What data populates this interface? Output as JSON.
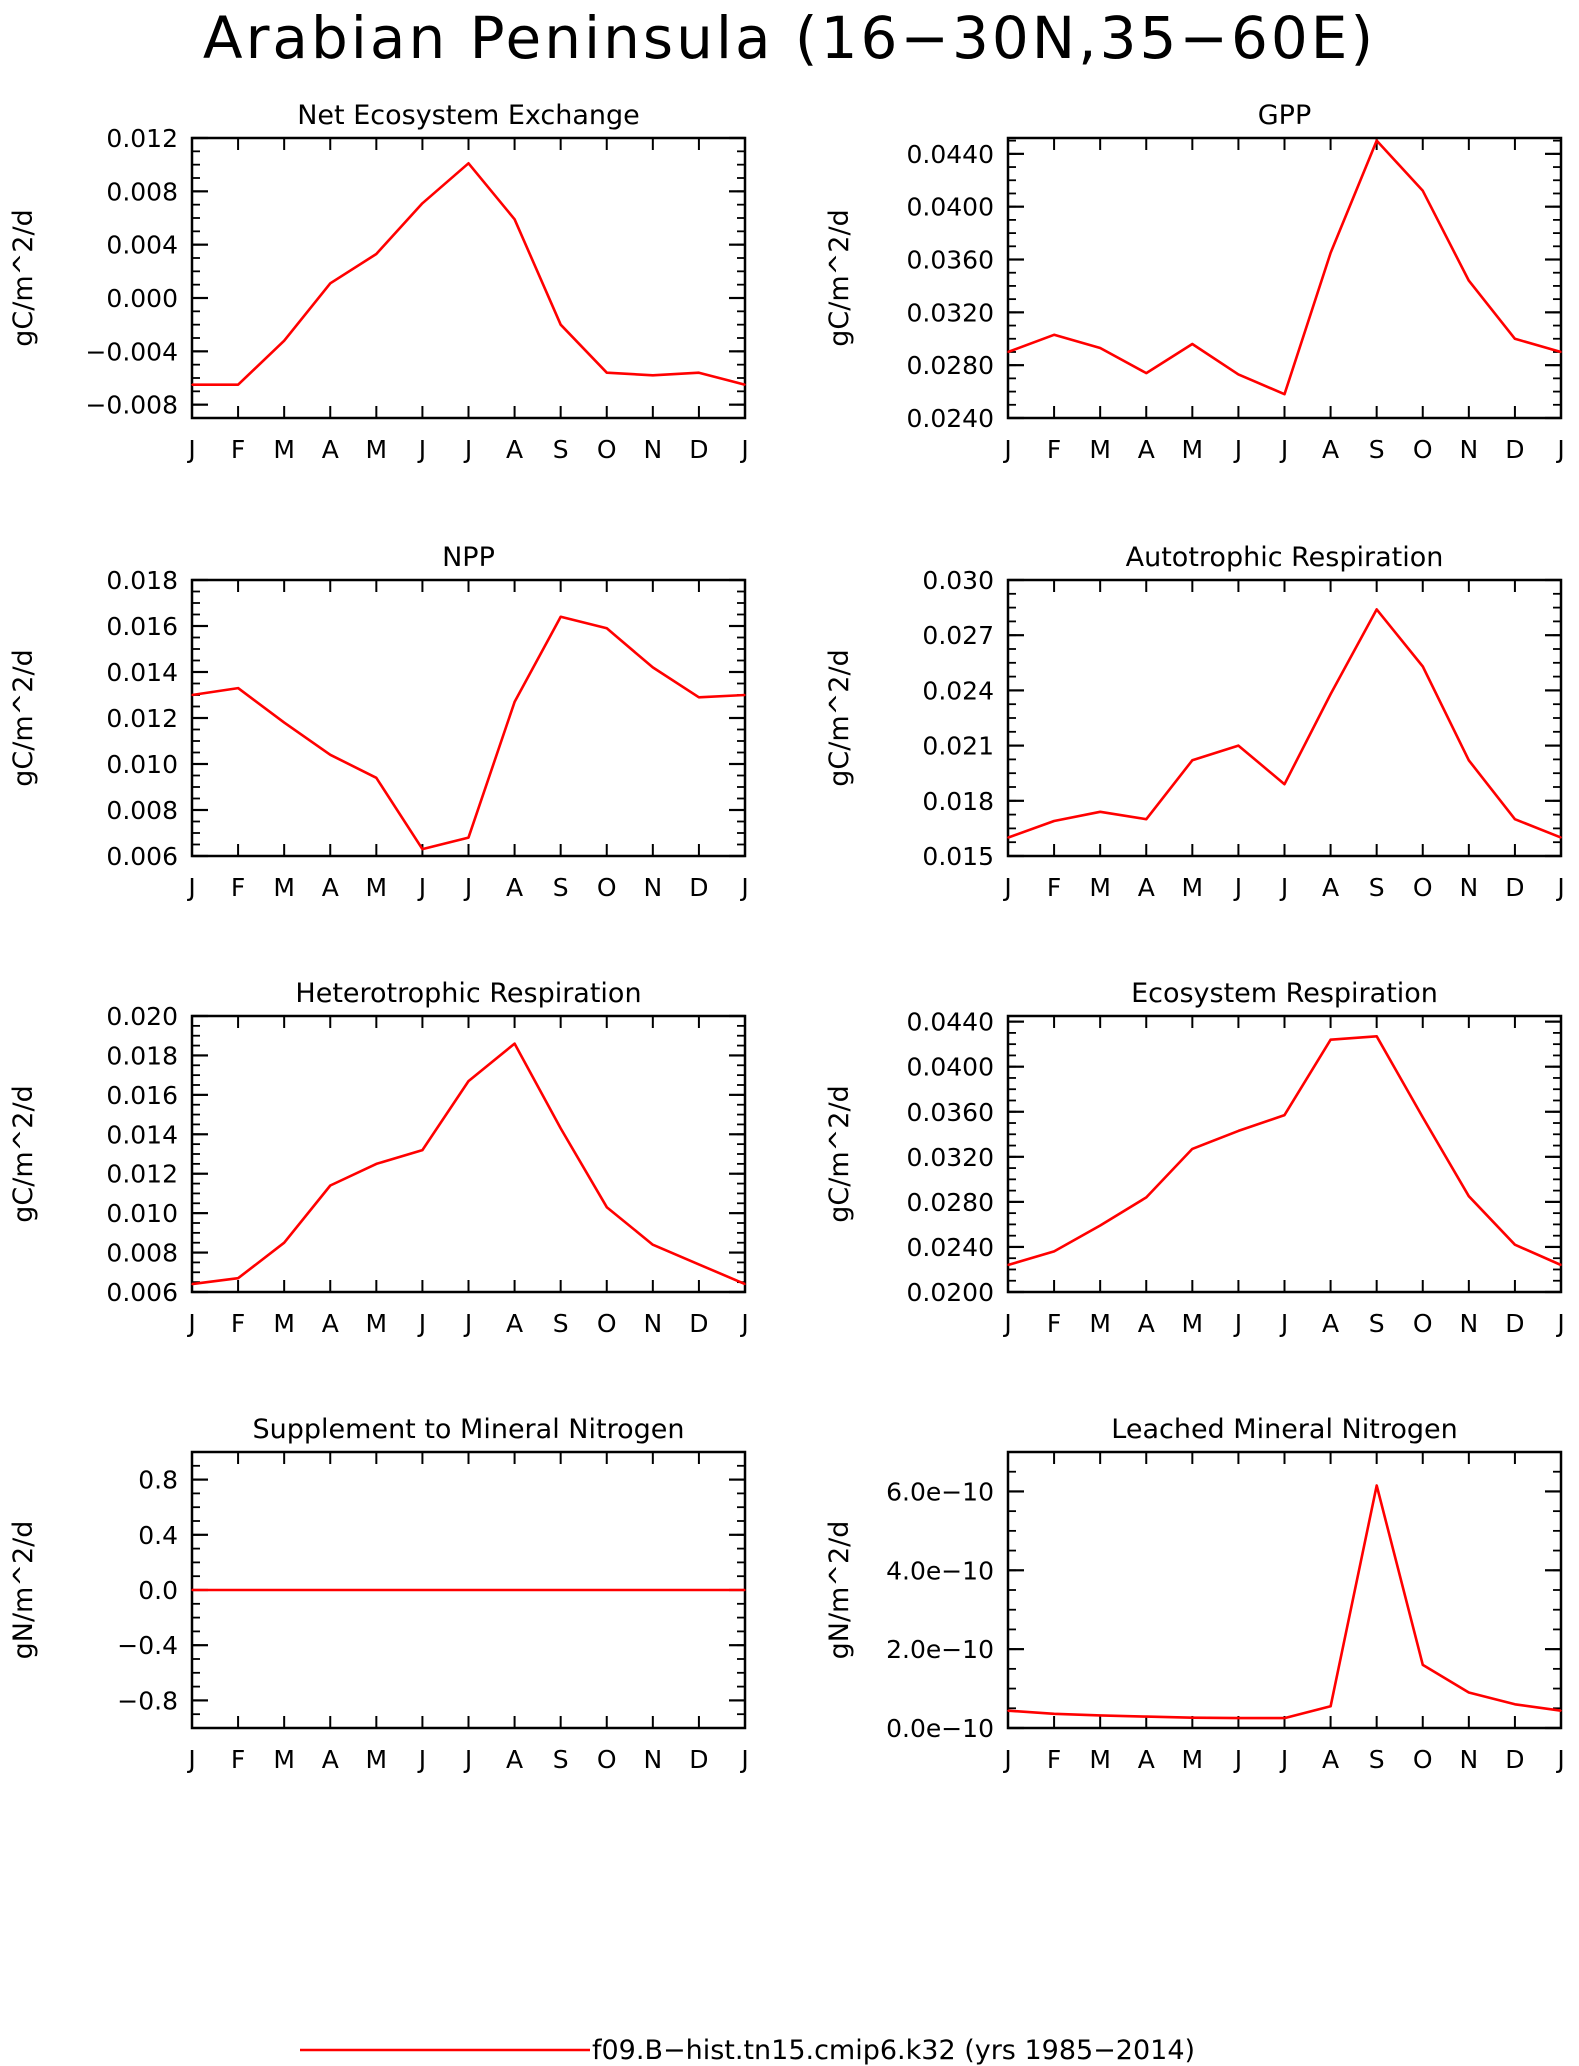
{
  "title": "Arabian Peninsula (16−30N,35−60E)",
  "legend": {
    "label": "f09.B−hist.tn15.cmip6.k32 (yrs 1985−2014)",
    "color": "#ff0000"
  },
  "months": [
    "J",
    "F",
    "M",
    "A",
    "M",
    "J",
    "J",
    "A",
    "S",
    "O",
    "N",
    "D",
    "J"
  ],
  "chart_data": [
    {
      "type": "line",
      "title": "Net Ecosystem Exchange",
      "ylabel": "gC/m^2/d",
      "ylim": [
        -0.009,
        0.012
      ],
      "yticks": [
        -0.008,
        -0.004,
        0.0,
        0.004,
        0.008,
        0.012
      ],
      "ytick_labels": [
        "−0.008",
        "−0.004",
        "0.000",
        "0.004",
        "0.008",
        "0.012"
      ],
      "series": [
        {
          "values": [
            -0.0065,
            -0.0065,
            -0.0032,
            0.0011,
            0.0033,
            0.0071,
            0.0101,
            0.0059,
            -0.002,
            -0.0056,
            -0.0058,
            -0.0056,
            -0.0065
          ]
        }
      ]
    },
    {
      "type": "line",
      "title": "GPP",
      "ylabel": "gC/m^2/d",
      "ylim": [
        0.024,
        0.0452
      ],
      "yticks": [
        0.024,
        0.028,
        0.032,
        0.036,
        0.04,
        0.044
      ],
      "ytick_labels": [
        "0.0240",
        "0.0280",
        "0.0320",
        "0.0360",
        "0.0400",
        "0.0440"
      ],
      "series": [
        {
          "values": [
            0.029,
            0.0303,
            0.0293,
            0.0274,
            0.0296,
            0.0273,
            0.0258,
            0.0365,
            0.045,
            0.0412,
            0.0344,
            0.03,
            0.029
          ]
        }
      ]
    },
    {
      "type": "line",
      "title": "NPP",
      "ylabel": "gC/m^2/d",
      "ylim": [
        0.006,
        0.018
      ],
      "yticks": [
        0.006,
        0.008,
        0.01,
        0.012,
        0.014,
        0.016,
        0.018
      ],
      "ytick_labels": [
        "0.006",
        "0.008",
        "0.010",
        "0.012",
        "0.014",
        "0.016",
        "0.018"
      ],
      "series": [
        {
          "values": [
            0.013,
            0.0133,
            0.0118,
            0.0104,
            0.0094,
            0.0063,
            0.0068,
            0.0127,
            0.0164,
            0.0159,
            0.0142,
            0.0129,
            0.013
          ]
        }
      ]
    },
    {
      "type": "line",
      "title": "Autotrophic Respiration",
      "ylabel": "gC/m^2/d",
      "ylim": [
        0.015,
        0.03
      ],
      "yticks": [
        0.015,
        0.018,
        0.021,
        0.024,
        0.027,
        0.03
      ],
      "ytick_labels": [
        "0.015",
        "0.018",
        "0.021",
        "0.024",
        "0.027",
        "0.030"
      ],
      "series": [
        {
          "values": [
            0.016,
            0.0169,
            0.0174,
            0.017,
            0.0202,
            0.021,
            0.0189,
            0.0238,
            0.0284,
            0.0253,
            0.0202,
            0.017,
            0.016
          ]
        }
      ]
    },
    {
      "type": "line",
      "title": "Heterotrophic Respiration",
      "ylabel": "gC/m^2/d",
      "ylim": [
        0.006,
        0.02
      ],
      "yticks": [
        0.006,
        0.008,
        0.01,
        0.012,
        0.014,
        0.016,
        0.018,
        0.02
      ],
      "ytick_labels": [
        "0.006",
        "0.008",
        "0.010",
        "0.012",
        "0.014",
        "0.016",
        "0.018",
        "0.020"
      ],
      "series": [
        {
          "values": [
            0.0064,
            0.0067,
            0.0085,
            0.0114,
            0.0125,
            0.0132,
            0.0167,
            0.0186,
            0.0143,
            0.0103,
            0.0084,
            0.0074,
            0.0064
          ]
        }
      ]
    },
    {
      "type": "line",
      "title": "Ecosystem Respiration",
      "ylabel": "gC/m^2/d",
      "ylim": [
        0.02,
        0.0445
      ],
      "yticks": [
        0.02,
        0.024,
        0.028,
        0.032,
        0.036,
        0.04,
        0.044
      ],
      "ytick_labels": [
        "0.0200",
        "0.0240",
        "0.0280",
        "0.0320",
        "0.0360",
        "0.0400",
        "0.0440"
      ],
      "series": [
        {
          "values": [
            0.0224,
            0.0236,
            0.0259,
            0.0284,
            0.0327,
            0.0343,
            0.0357,
            0.0424,
            0.0427,
            0.0355,
            0.0285,
            0.0242,
            0.0224
          ]
        }
      ]
    },
    {
      "type": "line",
      "title": "Supplement to Mineral Nitrogen",
      "ylabel": "gN/m^2/d",
      "ylim": [
        -1.0,
        1.0
      ],
      "yticks": [
        -0.8,
        -0.4,
        0.0,
        0.4,
        0.8
      ],
      "ytick_labels": [
        "−0.8",
        "−0.4",
        "0.0",
        "0.4",
        "0.8"
      ],
      "series": [
        {
          "values": [
            0,
            0,
            0,
            0,
            0,
            0,
            0,
            0,
            0,
            0,
            0,
            0,
            0
          ]
        }
      ]
    },
    {
      "type": "line",
      "title": "Leached Mineral Nitrogen",
      "ylabel": "gN/m^2/d",
      "ylim": [
        0,
        7e-10
      ],
      "yticks": [
        0,
        2e-10,
        4e-10,
        6e-10
      ],
      "ytick_labels": [
        "0.0e−10",
        "2.0e−10",
        "4.0e−10",
        "6.0e−10"
      ],
      "series": [
        {
          "values": [
            4.4e-11,
            3.6e-11,
            3.2e-11,
            2.9e-11,
            2.6e-11,
            2.5e-11,
            2.5e-11,
            5.5e-11,
            6.15e-10,
            1.6e-10,
            9e-11,
            6e-11,
            4.4e-11
          ]
        }
      ]
    }
  ]
}
